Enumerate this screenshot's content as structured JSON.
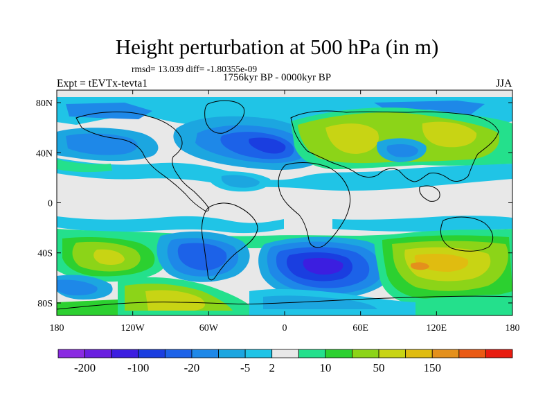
{
  "title": "Height perturbation at 500 hPa (in m)",
  "stats_line": "rmsd= 13.039 diff= -1.80355e-09",
  "period": "1756kyr BP - 0000kyr BP",
  "experiment": "Expt = tEVTx-tevta1",
  "season": "JJA",
  "axes": {
    "lon_ticks": [
      {
        "value": -180,
        "label": "180"
      },
      {
        "value": -120,
        "label": "120W"
      },
      {
        "value": -60,
        "label": "60W"
      },
      {
        "value": 0,
        "label": "0"
      },
      {
        "value": 60,
        "label": "60E"
      },
      {
        "value": 120,
        "label": "120E"
      },
      {
        "value": 180,
        "label": "180"
      }
    ],
    "lat_ticks": [
      {
        "value": 80,
        "label": "80N"
      },
      {
        "value": 40,
        "label": "40N"
      },
      {
        "value": 0,
        "label": "0"
      },
      {
        "value": -40,
        "label": "40S"
      },
      {
        "value": -80,
        "label": "80S"
      }
    ],
    "lon_range": [
      -180,
      180
    ],
    "lat_range": [
      -90,
      90
    ]
  },
  "colorbar": {
    "colors": [
      "#8a2be2",
      "#6a1fe0",
      "#3c1ee0",
      "#1a3ee0",
      "#1c62e8",
      "#1e88e8",
      "#1ca6e0",
      "#20c4e6",
      "#e8e8e8",
      "#24e08c",
      "#2cd030",
      "#8cd418",
      "#c8d414",
      "#e0bc10",
      "#e4901c",
      "#ea5a14",
      "#e81c10"
    ],
    "labels": [
      "-200",
      "-100",
      "-20",
      "-5",
      "2",
      "10",
      "50",
      "150"
    ],
    "label_after_box": [
      1,
      3,
      5,
      7,
      8,
      10,
      12,
      14
    ]
  },
  "field_colors": {
    "neutral": "#e8e8e8",
    "cyan": "#20c4e6",
    "lightblue": "#1ca6e0",
    "blue": "#1e88e8",
    "blue2": "#1c62e8",
    "darkblue": "#1a3ee0",
    "navy": "#3c1ee0",
    "teal": "#24e08c",
    "green": "#2cd030",
    "yellowgreen": "#8cd418",
    "olive": "#c8d414",
    "orange": "#e0bc10",
    "darkorange": "#e4901c"
  }
}
